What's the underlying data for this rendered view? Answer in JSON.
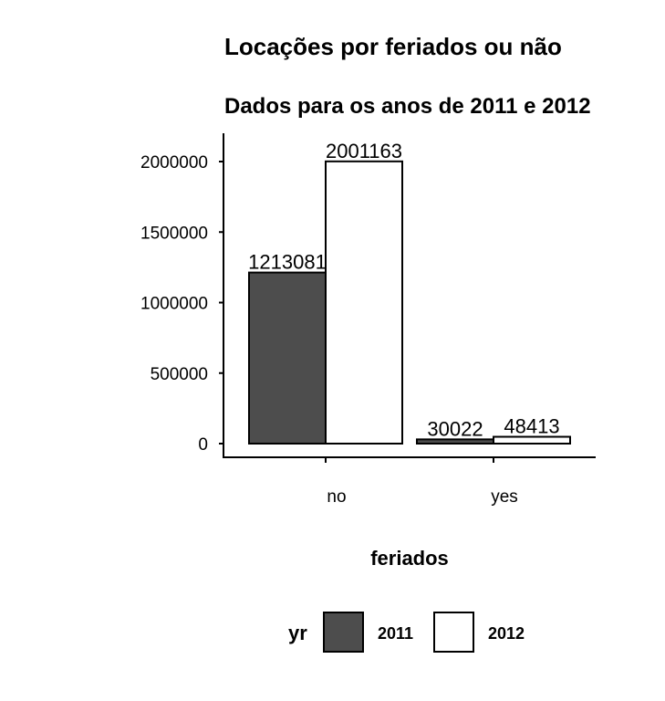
{
  "chart_data": {
    "type": "bar",
    "title": "Locações por feriados ou não",
    "subtitle": "Dados para os anos de 2011 e 2012",
    "xlabel": "feriados",
    "ylabel": "",
    "categories": [
      "no",
      "yes"
    ],
    "series": [
      {
        "name": "2011",
        "values": [
          1213081,
          30022
        ],
        "color": "#4d4d4d"
      },
      {
        "name": "2012",
        "values": [
          2001163,
          48413
        ],
        "color": "#ffffff"
      }
    ],
    "ylim": [
      0,
      2100000
    ],
    "yticks": [
      0,
      500000,
      1000000,
      1500000,
      2000000
    ],
    "ytick_labels": [
      "0",
      "500000",
      "1000000",
      "1500000",
      "2000000"
    ],
    "legend": {
      "title": "yr",
      "position": "bottom"
    },
    "grid": false
  }
}
